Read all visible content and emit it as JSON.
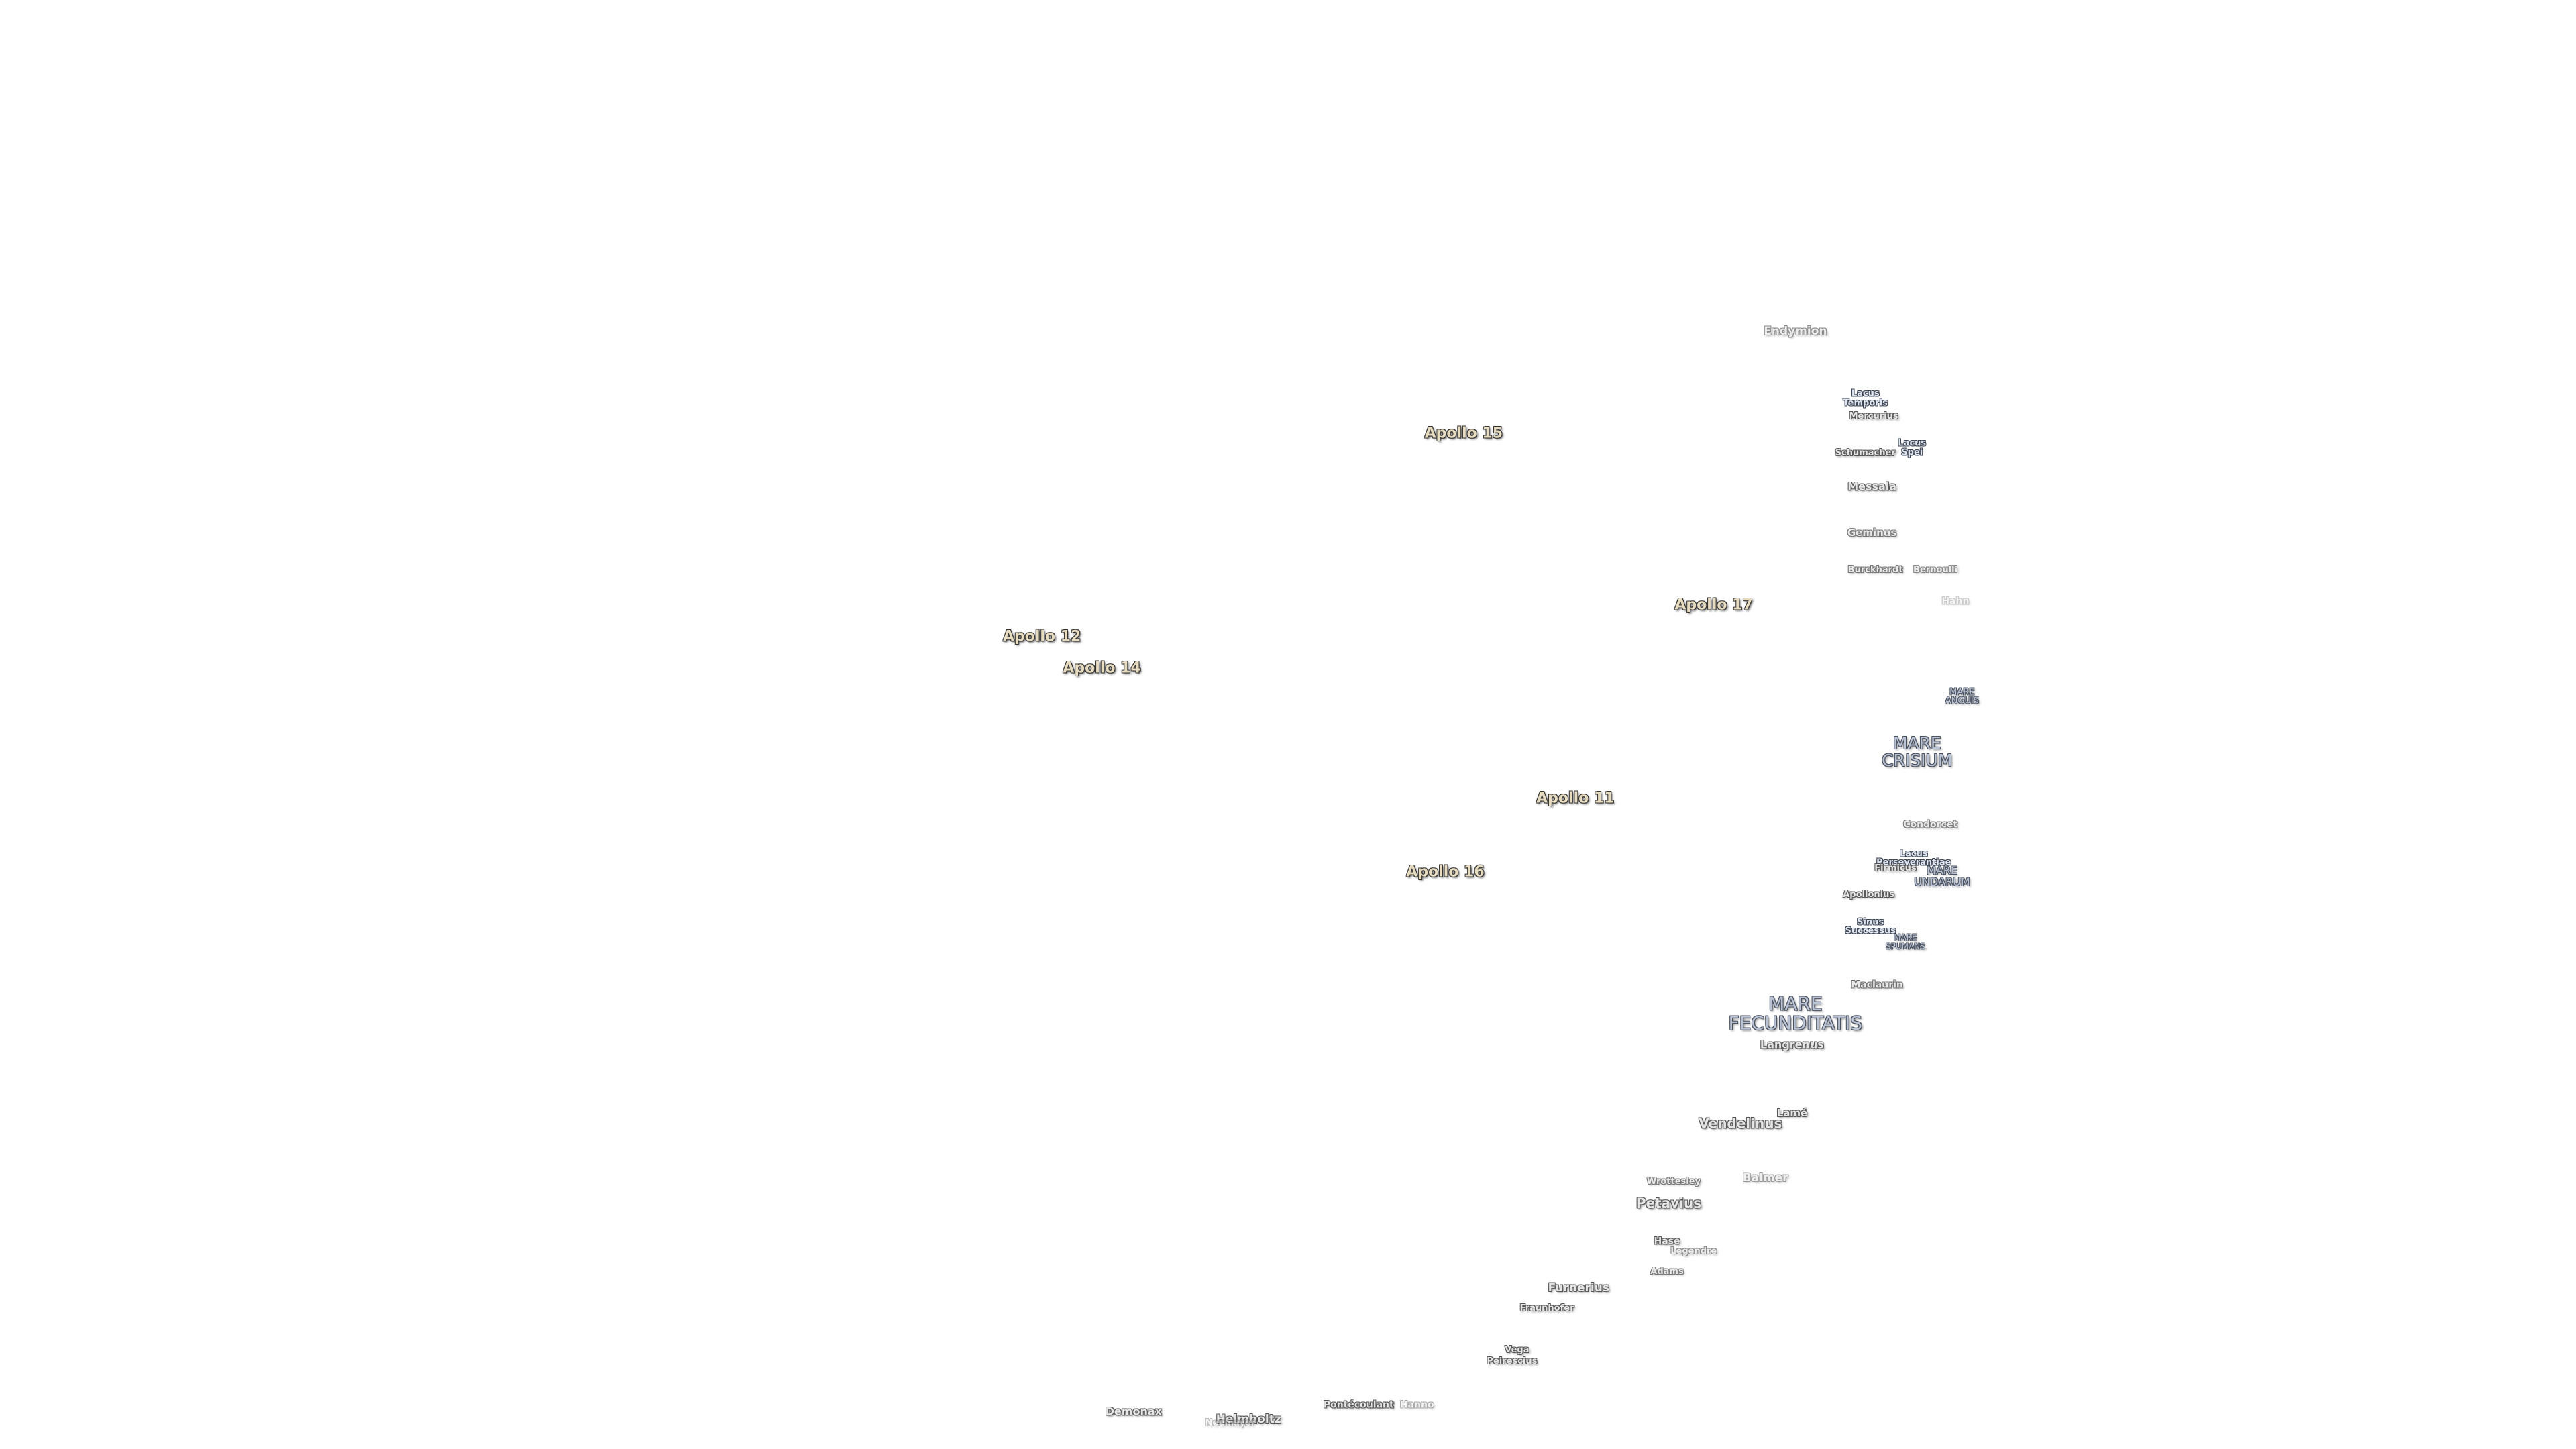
{
  "apollo_sites": [
    "Apollo 15",
    "Apollo 17",
    "Apollo 12",
    "Apollo 14",
    "Apollo 11",
    "Apollo 16"
  ],
  "maria": [
    "MARE CRISIUM",
    "MARE FECUNDITATIS",
    "MARE ANGUIS",
    "MARE UNDARUM",
    "MARE SPUMANS"
  ],
  "lakes": [
    "Lacus Temporis",
    "Lacus Spei",
    "Lacus Perseverantiae",
    "Sinus Successus"
  ],
  "craters": [
    "Endymion",
    "Mercurius",
    "Schumacher",
    "Messala",
    "Geminus",
    "Burckhardt",
    "Bernoulli",
    "Hahn",
    "Condorcet",
    "Firmicus",
    "Apollonius",
    "Maclaurin",
    "Langrenus",
    "Lamé",
    "Vendelinus",
    "Wrottesley",
    "Balmer",
    "Petavius",
    "Hase",
    "Legendre",
    "Adams",
    "Furnerius",
    "Fraunhofer",
    "Vega",
    "Peirescius",
    "Pontécoulant",
    "Hanno",
    "Demonax",
    "Helmholtz",
    "Neumayer"
  ]
}
